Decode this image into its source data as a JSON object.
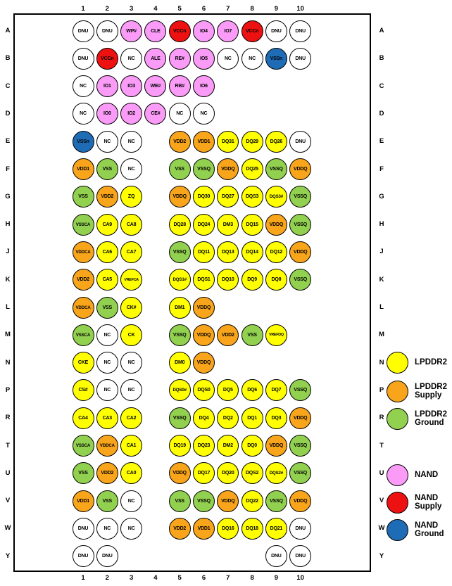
{
  "diagram": {
    "columns": [
      "1",
      "2",
      "3",
      "4",
      "5",
      "6",
      "7",
      "8",
      "9",
      "10"
    ],
    "rows": [
      "A",
      "B",
      "C",
      "D",
      "E",
      "F",
      "G",
      "H",
      "J",
      "K",
      "L",
      "M",
      "N",
      "P",
      "R",
      "T",
      "U",
      "V",
      "W",
      "Y"
    ],
    "balls": [
      [
        "A",
        1,
        "DNU",
        "X"
      ],
      [
        "A",
        2,
        "DNU",
        "X"
      ],
      [
        "A",
        3,
        "WP#",
        "N"
      ],
      [
        "A",
        4,
        "CLE",
        "N"
      ],
      [
        "A",
        5,
        "VCCn",
        "NS"
      ],
      [
        "A",
        6,
        "IO4",
        "N"
      ],
      [
        "A",
        7,
        "IO7",
        "N"
      ],
      [
        "A",
        8,
        "VCCn",
        "NS"
      ],
      [
        "A",
        9,
        "DNU",
        "X"
      ],
      [
        "A",
        10,
        "DNU",
        "X"
      ],
      [
        "B",
        1,
        "DNU",
        "X"
      ],
      [
        "B",
        2,
        "VCCn",
        "NS"
      ],
      [
        "B",
        3,
        "NC",
        "X"
      ],
      [
        "B",
        4,
        "ALE",
        "N"
      ],
      [
        "B",
        5,
        "RE#",
        "N"
      ],
      [
        "B",
        6,
        "IO5",
        "N"
      ],
      [
        "B",
        7,
        "NC",
        "X"
      ],
      [
        "B",
        8,
        "NC",
        "X"
      ],
      [
        "B",
        9,
        "VSSn",
        "NG"
      ],
      [
        "B",
        10,
        "DNU",
        "X"
      ],
      [
        "C",
        1,
        "NC",
        "X"
      ],
      [
        "C",
        2,
        "IO1",
        "N"
      ],
      [
        "C",
        3,
        "IO3",
        "N"
      ],
      [
        "C",
        4,
        "WE#",
        "N"
      ],
      [
        "C",
        5,
        "RB#",
        "N"
      ],
      [
        "C",
        6,
        "IO6",
        "N"
      ],
      [
        "D",
        1,
        "NC",
        "X"
      ],
      [
        "D",
        2,
        "IO0",
        "N"
      ],
      [
        "D",
        3,
        "IO2",
        "N"
      ],
      [
        "D",
        4,
        "CE#",
        "N"
      ],
      [
        "D",
        5,
        "NC",
        "X"
      ],
      [
        "D",
        6,
        "NC",
        "X"
      ],
      [
        "E",
        1,
        "VSSn",
        "NG"
      ],
      [
        "E",
        2,
        "NC",
        "X"
      ],
      [
        "E",
        3,
        "NC",
        "X"
      ],
      [
        "E",
        5,
        "VDD2",
        "LS"
      ],
      [
        "E",
        6,
        "VDD1",
        "LS"
      ],
      [
        "E",
        7,
        "DQ31",
        "L"
      ],
      [
        "E",
        8,
        "DQ29",
        "L"
      ],
      [
        "E",
        9,
        "DQ26",
        "L"
      ],
      [
        "E",
        10,
        "DNU",
        "X"
      ],
      [
        "F",
        1,
        "VDD1",
        "LS"
      ],
      [
        "F",
        2,
        "VSS",
        "LG"
      ],
      [
        "F",
        3,
        "NC",
        "X"
      ],
      [
        "F",
        5,
        "VSS",
        "LG"
      ],
      [
        "F",
        6,
        "VSSQ",
        "LG"
      ],
      [
        "F",
        7,
        "VDDQ",
        "LS"
      ],
      [
        "F",
        8,
        "DQ25",
        "L"
      ],
      [
        "F",
        9,
        "VSSQ",
        "LG"
      ],
      [
        "F",
        10,
        "VDDQ",
        "LS"
      ],
      [
        "G",
        1,
        "VSS",
        "LG"
      ],
      [
        "G",
        2,
        "VDD2",
        "LS"
      ],
      [
        "G",
        3,
        "ZQ",
        "L"
      ],
      [
        "G",
        5,
        "VDDQ",
        "LS"
      ],
      [
        "G",
        6,
        "DQ30",
        "L"
      ],
      [
        "G",
        7,
        "DQ27",
        "L"
      ],
      [
        "G",
        8,
        "DQS3",
        "L"
      ],
      [
        "G",
        9,
        "DQS3#",
        "L"
      ],
      [
        "G",
        10,
        "VSSQ",
        "LG"
      ],
      [
        "H",
        1,
        "VSSCA",
        "LG"
      ],
      [
        "H",
        2,
        "CA9",
        "L"
      ],
      [
        "H",
        3,
        "CA8",
        "L"
      ],
      [
        "H",
        5,
        "DQ28",
        "L"
      ],
      [
        "H",
        6,
        "DQ24",
        "L"
      ],
      [
        "H",
        7,
        "DM3",
        "L"
      ],
      [
        "H",
        8,
        "DQ15",
        "L"
      ],
      [
        "H",
        9,
        "VDDQ",
        "LS"
      ],
      [
        "H",
        10,
        "VSSQ",
        "LG"
      ],
      [
        "J",
        1,
        "VDDCA",
        "LS"
      ],
      [
        "J",
        2,
        "CA6",
        "L"
      ],
      [
        "J",
        3,
        "CA7",
        "L"
      ],
      [
        "J",
        5,
        "VSSQ",
        "LG"
      ],
      [
        "J",
        6,
        "DQ11",
        "L"
      ],
      [
        "J",
        7,
        "DQ13",
        "L"
      ],
      [
        "J",
        8,
        "DQ14",
        "L"
      ],
      [
        "J",
        9,
        "DQ12",
        "L"
      ],
      [
        "J",
        10,
        "VDDQ",
        "LS"
      ],
      [
        "K",
        1,
        "VDD2",
        "LS"
      ],
      [
        "K",
        2,
        "CA5",
        "L"
      ],
      [
        "K",
        3,
        "VREFCA",
        "L"
      ],
      [
        "K",
        5,
        "DQS1#",
        "L"
      ],
      [
        "K",
        6,
        "DQS1",
        "L"
      ],
      [
        "K",
        7,
        "DQ10",
        "L"
      ],
      [
        "K",
        8,
        "DQ9",
        "L"
      ],
      [
        "K",
        9,
        "DQ8",
        "L"
      ],
      [
        "K",
        10,
        "VSSQ",
        "LG"
      ],
      [
        "L",
        1,
        "VDDCA",
        "LS"
      ],
      [
        "L",
        2,
        "VSS",
        "LG"
      ],
      [
        "L",
        3,
        "CK#",
        "L"
      ],
      [
        "L",
        5,
        "DM1",
        "L"
      ],
      [
        "L",
        6,
        "VDDQ",
        "LS"
      ],
      [
        "M",
        1,
        "VSSCA",
        "LG"
      ],
      [
        "M",
        2,
        "NC",
        "X"
      ],
      [
        "M",
        3,
        "CK",
        "L"
      ],
      [
        "M",
        5,
        "VSSQ",
        "LG"
      ],
      [
        "M",
        6,
        "VDDQ",
        "LS"
      ],
      [
        "M",
        7,
        "VDD2",
        "LS"
      ],
      [
        "M",
        8,
        "VSS",
        "LG"
      ],
      [
        "M",
        9,
        "VREFDQ",
        "L"
      ],
      [
        "N",
        1,
        "CKE",
        "L"
      ],
      [
        "N",
        2,
        "NC",
        "X"
      ],
      [
        "N",
        3,
        "NC",
        "X"
      ],
      [
        "N",
        5,
        "DM0",
        "L"
      ],
      [
        "N",
        6,
        "VDDQ",
        "LS"
      ],
      [
        "P",
        1,
        "CS#",
        "L"
      ],
      [
        "P",
        2,
        "NC",
        "X"
      ],
      [
        "P",
        3,
        "NC",
        "X"
      ],
      [
        "P",
        5,
        "DQS0#",
        "L"
      ],
      [
        "P",
        6,
        "DQS0",
        "L"
      ],
      [
        "P",
        7,
        "DQ5",
        "L"
      ],
      [
        "P",
        8,
        "DQ6",
        "L"
      ],
      [
        "P",
        9,
        "DQ7",
        "L"
      ],
      [
        "P",
        10,
        "VSSQ",
        "LG"
      ],
      [
        "R",
        1,
        "CA4",
        "L"
      ],
      [
        "R",
        2,
        "CA3",
        "L"
      ],
      [
        "R",
        3,
        "CA2",
        "L"
      ],
      [
        "R",
        5,
        "VSSQ",
        "LG"
      ],
      [
        "R",
        6,
        "DQ4",
        "L"
      ],
      [
        "R",
        7,
        "DQ2",
        "L"
      ],
      [
        "R",
        8,
        "DQ1",
        "L"
      ],
      [
        "R",
        9,
        "DQ3",
        "L"
      ],
      [
        "R",
        10,
        "VDDQ",
        "LS"
      ],
      [
        "T",
        1,
        "VSSCA",
        "LG"
      ],
      [
        "T",
        2,
        "VDDCA",
        "LS"
      ],
      [
        "T",
        3,
        "CA1",
        "L"
      ],
      [
        "T",
        5,
        "DQ19",
        "L"
      ],
      [
        "T",
        6,
        "DQ23",
        "L"
      ],
      [
        "T",
        7,
        "DM2",
        "L"
      ],
      [
        "T",
        8,
        "DQ0",
        "L"
      ],
      [
        "T",
        9,
        "VDDQ",
        "LS"
      ],
      [
        "T",
        10,
        "VSSQ",
        "LG"
      ],
      [
        "U",
        1,
        "VSS",
        "LG"
      ],
      [
        "U",
        2,
        "VDD2",
        "LS"
      ],
      [
        "U",
        3,
        "CA0",
        "L"
      ],
      [
        "U",
        5,
        "VDDQ",
        "LS"
      ],
      [
        "U",
        6,
        "DQ17",
        "L"
      ],
      [
        "U",
        7,
        "DQ20",
        "L"
      ],
      [
        "U",
        8,
        "DQS2",
        "L"
      ],
      [
        "U",
        9,
        "DQS2#",
        "L"
      ],
      [
        "U",
        10,
        "VSSQ",
        "LG"
      ],
      [
        "V",
        1,
        "VDD1",
        "LS"
      ],
      [
        "V",
        2,
        "VSS",
        "LG"
      ],
      [
        "V",
        3,
        "NC",
        "X"
      ],
      [
        "V",
        5,
        "VSS",
        "LG"
      ],
      [
        "V",
        6,
        "VSSQ",
        "LG"
      ],
      [
        "V",
        7,
        "VDDQ",
        "LS"
      ],
      [
        "V",
        8,
        "DQ22",
        "L"
      ],
      [
        "V",
        9,
        "VSSQ",
        "LG"
      ],
      [
        "V",
        10,
        "VDDQ",
        "LS"
      ],
      [
        "W",
        1,
        "DNU",
        "X"
      ],
      [
        "W",
        2,
        "NC",
        "X"
      ],
      [
        "W",
        3,
        "NC",
        "X"
      ],
      [
        "W",
        5,
        "VDD2",
        "LS"
      ],
      [
        "W",
        6,
        "VDD1",
        "LS"
      ],
      [
        "W",
        7,
        "DQ16",
        "L"
      ],
      [
        "W",
        8,
        "DQ18",
        "L"
      ],
      [
        "W",
        9,
        "DQ21",
        "L"
      ],
      [
        "W",
        10,
        "DNU",
        "X"
      ],
      [
        "Y",
        1,
        "DNU",
        "X"
      ],
      [
        "Y",
        2,
        "DNU",
        "X"
      ],
      [
        "Y",
        9,
        "DNU",
        "X"
      ],
      [
        "Y",
        10,
        "DNU",
        "X"
      ]
    ]
  },
  "colors": {
    "L": "#FFFF00",
    "LS": "#F9A51B",
    "LG": "#92D050",
    "N": "#FA9CF7",
    "NS": "#EE1111",
    "NG": "#1E6CB5",
    "X": "#FFFFFF"
  },
  "legend": [
    {
      "lines": [
        "LPDDR2"
      ],
      "type": "L"
    },
    {
      "lines": [
        "LPDDR2",
        "Supply"
      ],
      "type": "LS"
    },
    {
      "lines": [
        "LPDDR2",
        "Ground"
      ],
      "type": "LG"
    },
    {
      "lines": [
        "NAND"
      ],
      "type": "N"
    },
    {
      "lines": [
        "NAND",
        "Supply"
      ],
      "type": "NS"
    },
    {
      "lines": [
        "NAND",
        "Ground"
      ],
      "type": "NG"
    }
  ]
}
